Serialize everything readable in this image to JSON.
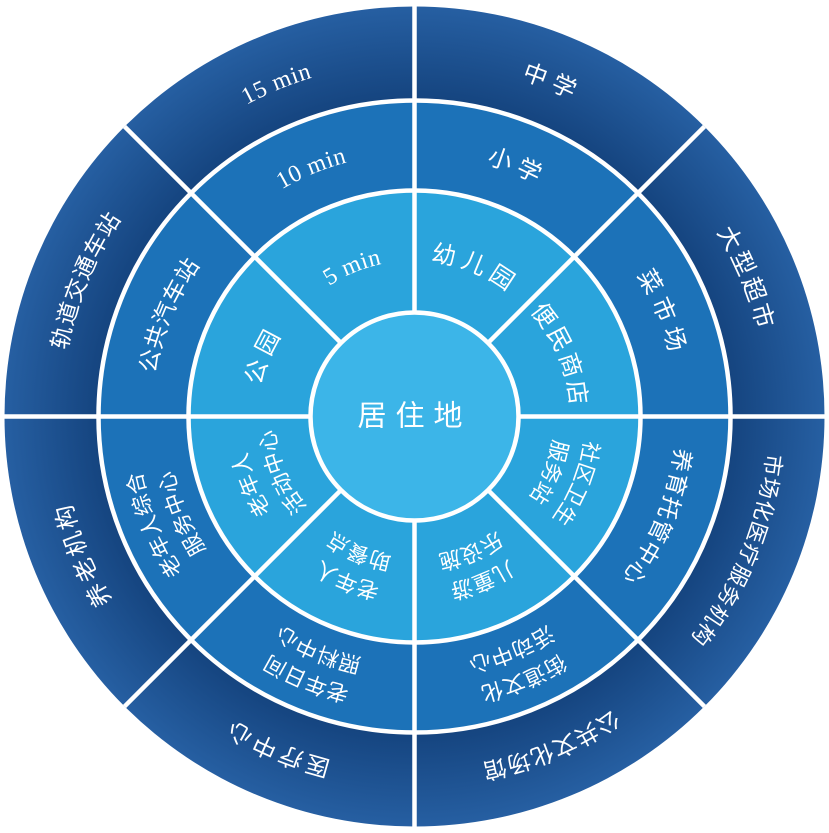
{
  "wheel": {
    "center_label": "居住地",
    "rings": [
      {
        "name": "ring-5min",
        "time_label": "5 min"
      },
      {
        "name": "ring-10min",
        "time_label": "10 min"
      },
      {
        "name": "ring-15min",
        "time_label": "15 min"
      }
    ],
    "sectors": [
      {
        "angle": 22.5,
        "ring5": [
          "幼儿园"
        ],
        "ring10": [
          "小学"
        ],
        "ring15": [
          "中学"
        ]
      },
      {
        "angle": 67.5,
        "ring5": [
          "便民商店"
        ],
        "ring10": [
          "菜市场"
        ],
        "ring15": [
          "大型超市"
        ]
      },
      {
        "angle": 112.5,
        "ring5": [
          "社区卫生",
          "服务站"
        ],
        "ring10": [
          "养育托管中心"
        ],
        "ring15": [
          "市场化医疗服务机构"
        ]
      },
      {
        "angle": 157.5,
        "ring5": [
          "儿童游",
          "乐设施"
        ],
        "ring10": [
          "街道文化",
          "活动中心"
        ],
        "ring15": [
          "公共文化场馆"
        ]
      },
      {
        "angle": 202.5,
        "ring5": [
          "老年人",
          "助餐点"
        ],
        "ring10": [
          "老年日间",
          "照料中心"
        ],
        "ring15": [
          "医疗中心"
        ]
      },
      {
        "angle": 247.5,
        "ring5": [
          "老年人",
          "活动中心"
        ],
        "ring10": [
          "老年人综合",
          "服务中心"
        ],
        "ring15": [
          "养老机构"
        ]
      },
      {
        "angle": 292.5,
        "ring5": [
          "公园"
        ],
        "ring10": [
          "公共汽车站"
        ],
        "ring15": [
          "轨道交通车站"
        ]
      },
      {
        "angle": 337.5,
        "ring5": [
          "5 min"
        ],
        "ring10": [
          "10 min"
        ],
        "ring15": [
          "15 min"
        ],
        "is_time_sector": true
      }
    ],
    "colors": {
      "center": "#3CB5E8",
      "ring5": "#2AA4DC",
      "ring10": "#1C72B8",
      "ring15_inner": "#113E77",
      "ring15_outer": "#265FA2",
      "divider": "#FFFFFF",
      "text": "#FFFFFF",
      "background": "#FFFFFF"
    }
  }
}
